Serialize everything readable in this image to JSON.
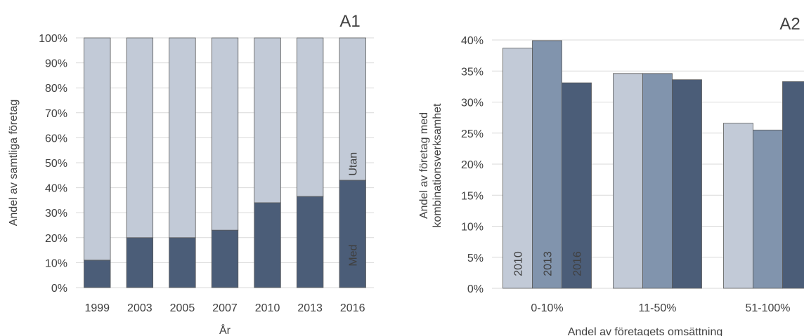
{
  "chart_data": [
    {
      "id": "A1",
      "type": "bar",
      "stacked": true,
      "panel_label": "A1",
      "xlabel": "År",
      "ylabel": "Andel av samtliga företag",
      "ylim": [
        0,
        100
      ],
      "y_ticks": [
        "0%",
        "10%",
        "20%",
        "30%",
        "40%",
        "50%",
        "60%",
        "70%",
        "80%",
        "90%",
        "100%"
      ],
      "categories": [
        "1999",
        "2003",
        "2005",
        "2007",
        "2010",
        "2013",
        "2016"
      ],
      "series": [
        {
          "name": "Med",
          "values": [
            11,
            20,
            20,
            23,
            34,
            36.5,
            43
          ],
          "color": "#4b5d78"
        },
        {
          "name": "Utan",
          "values": [
            89,
            80,
            80,
            77,
            66,
            63.5,
            57
          ],
          "color": "#c2cad7"
        }
      ],
      "grid": true
    },
    {
      "id": "A2",
      "type": "bar",
      "panel_label": "A2",
      "xlabel": "Andel av företagets omsättning",
      "ylabel_lines": [
        "Andel av företag med",
        "kombinationsverksamhet"
      ],
      "ylim": [
        0,
        40
      ],
      "y_ticks": [
        "0%",
        "5%",
        "10%",
        "15%",
        "20%",
        "25%",
        "30%",
        "35%",
        "40%"
      ],
      "categories": [
        "0-10%",
        "11-50%",
        "51-100%"
      ],
      "series": [
        {
          "name": "2010",
          "values": [
            38.7,
            34.6,
            26.6
          ],
          "color": "#c2cad7"
        },
        {
          "name": "2013",
          "values": [
            39.9,
            34.6,
            25.5
          ],
          "color": "#8194ad"
        },
        {
          "name": "2016",
          "values": [
            33.1,
            33.6,
            33.3
          ],
          "color": "#4b5d78"
        }
      ],
      "grid": true
    }
  ],
  "colors": {
    "gridline": "#d9d9d9",
    "bar_stroke": "#5a5a5a",
    "text": "#404040",
    "inbar_text_dark": "#262626",
    "inbar_text_light": "#ffffff"
  }
}
